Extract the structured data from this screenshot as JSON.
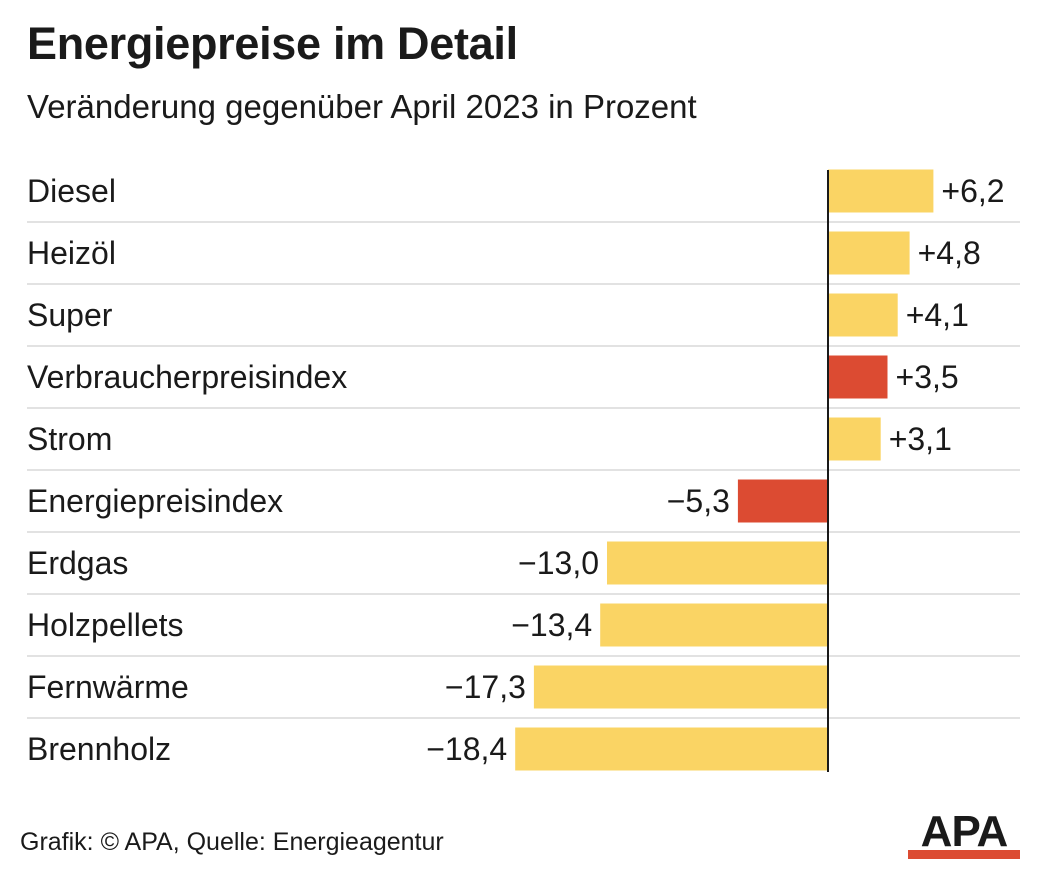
{
  "title": "Energiepreise im Detail",
  "subtitle": "Veränderung gegenüber April 2023 in Prozent",
  "footer": "Grafik: © APA, Quelle: Energieagentur",
  "logo_text": "APA",
  "colors": {
    "yellow": "#fad464",
    "red": "#dc4b32",
    "axis": "#1a1a1a",
    "divider": "#d9d9d9",
    "text": "#1a1a1a"
  },
  "chart_data": {
    "type": "bar",
    "orientation": "horizontal",
    "categories": [
      "Diesel",
      "Heizöl",
      "Super",
      "Verbraucherpreisindex",
      "Strom",
      "Energiepreisindex",
      "Erdgas",
      "Holzpellets",
      "Fernwärme",
      "Brennholz"
    ],
    "values": [
      6.2,
      4.8,
      4.1,
      3.5,
      3.1,
      -5.3,
      -13.0,
      -13.4,
      -17.3,
      -18.4
    ],
    "labels": [
      "+6,2",
      "+4,8",
      "+4,1",
      "+3,5",
      "+3,1",
      "−5,3",
      "−13,0",
      "−13,4",
      "−17,3",
      "−18,4"
    ],
    "highlight": [
      false,
      false,
      false,
      true,
      false,
      true,
      false,
      false,
      false,
      false
    ],
    "grid": false
  }
}
